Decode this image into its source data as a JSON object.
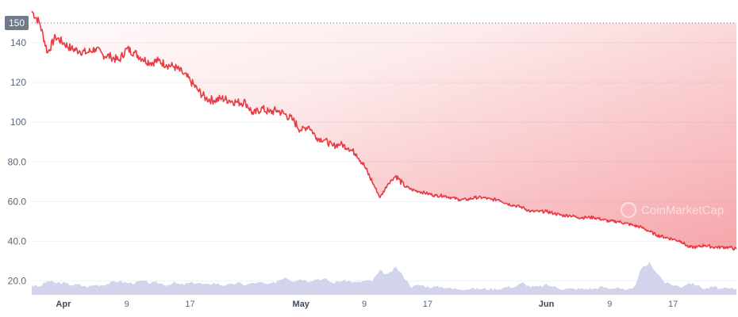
{
  "chart_data": {
    "type": "line",
    "title": "",
    "xlabel": "",
    "ylabel": "",
    "ylim": [
      13,
      156
    ],
    "y_ticks": [
      {
        "value": 140,
        "label": "140"
      },
      {
        "value": 120,
        "label": "120"
      },
      {
        "value": 100,
        "label": "100"
      },
      {
        "value": 80,
        "label": "80.0"
      },
      {
        "value": 60,
        "label": "60.0"
      },
      {
        "value": 40,
        "label": "40.0"
      },
      {
        "value": 20,
        "label": "20.0"
      }
    ],
    "x_ticks": [
      {
        "date": "2024-04-01",
        "label": "Apr",
        "month": true
      },
      {
        "date": "2024-04-09",
        "label": "9",
        "month": false
      },
      {
        "date": "2024-04-17",
        "label": "17",
        "month": false
      },
      {
        "date": "2024-05-01",
        "label": "May",
        "month": true
      },
      {
        "date": "2024-05-09",
        "label": "9",
        "month": false
      },
      {
        "date": "2024-05-17",
        "label": "17",
        "month": false
      },
      {
        "date": "2024-06-01",
        "label": "Jun",
        "month": true
      },
      {
        "date": "2024-06-09",
        "label": "9",
        "month": false
      },
      {
        "date": "2024-06-17",
        "label": "17",
        "month": false
      }
    ],
    "x_range": [
      "2024-03-28",
      "2024-06-25"
    ],
    "reference_line": {
      "value": 150,
      "label": "150",
      "style": "dotted"
    },
    "watermark": "CoinMarketCap",
    "grid": true,
    "series": [
      {
        "type": "line",
        "color": "#ea3943",
        "fill": "red gradient",
        "x": [
          "2024-03-28",
          "2024-03-29",
          "2024-03-30",
          "2024-03-31",
          "2024-04-01",
          "2024-04-02",
          "2024-04-03",
          "2024-04-04",
          "2024-04-05",
          "2024-04-06",
          "2024-04-07",
          "2024-04-08",
          "2024-04-09",
          "2024-04-10",
          "2024-04-11",
          "2024-04-12",
          "2024-04-13",
          "2024-04-14",
          "2024-04-15",
          "2024-04-16",
          "2024-04-17",
          "2024-04-18",
          "2024-04-19",
          "2024-04-20",
          "2024-04-21",
          "2024-04-22",
          "2024-04-23",
          "2024-04-24",
          "2024-04-25",
          "2024-04-26",
          "2024-04-27",
          "2024-04-28",
          "2024-04-29",
          "2024-04-30",
          "2024-05-01",
          "2024-05-02",
          "2024-05-03",
          "2024-05-04",
          "2024-05-05",
          "2024-05-06",
          "2024-05-07",
          "2024-05-08",
          "2024-05-09",
          "2024-05-10",
          "2024-05-11",
          "2024-05-12",
          "2024-05-13",
          "2024-05-14",
          "2024-05-15",
          "2024-05-16",
          "2024-05-17",
          "2024-05-18",
          "2024-05-19",
          "2024-05-20",
          "2024-05-21",
          "2024-05-22",
          "2024-05-23",
          "2024-05-24",
          "2024-05-25",
          "2024-05-26",
          "2024-05-27",
          "2024-05-28",
          "2024-05-29",
          "2024-05-30",
          "2024-05-31",
          "2024-06-01",
          "2024-06-02",
          "2024-06-03",
          "2024-06-04",
          "2024-06-05",
          "2024-06-06",
          "2024-06-07",
          "2024-06-08",
          "2024-06-09",
          "2024-06-10",
          "2024-06-11",
          "2024-06-12",
          "2024-06-13",
          "2024-06-14",
          "2024-06-15",
          "2024-06-16",
          "2024-06-17",
          "2024-06-18",
          "2024-06-19",
          "2024-06-20",
          "2024-06-21",
          "2024-06-22",
          "2024-06-23",
          "2024-06-24",
          "2024-06-25"
        ],
        "values": [
          156,
          150,
          135,
          143,
          140,
          137,
          136,
          135,
          137,
          134,
          133,
          131,
          137,
          135,
          132,
          130,
          131,
          129,
          128,
          125,
          121,
          116,
          112,
          111,
          112,
          111,
          110,
          110,
          104,
          107,
          105,
          106,
          104,
          101,
          96,
          98,
          92,
          91,
          88,
          89,
          87,
          84,
          78,
          70,
          62,
          69,
          73,
          68,
          66,
          65,
          64,
          63,
          63,
          62,
          61,
          61,
          62,
          62,
          61,
          61,
          59,
          58,
          57,
          55,
          55,
          55,
          54,
          53,
          53,
          52,
          52,
          52,
          51,
          50,
          50,
          49,
          48,
          47,
          45,
          43,
          42,
          41,
          40,
          37,
          37,
          38,
          37,
          37,
          37,
          36
        ]
      },
      {
        "type": "area",
        "name": "volume",
        "color": "#c9cde6",
        "values": [
          18,
          17,
          20,
          19,
          19,
          18,
          18,
          17,
          18,
          18,
          19,
          20,
          19,
          19,
          20,
          19,
          19,
          18,
          19,
          18,
          19,
          19,
          18,
          19,
          18,
          18,
          19,
          18,
          19,
          19,
          18,
          20,
          22,
          20,
          21,
          20,
          21,
          21,
          19,
          20,
          20,
          19,
          20,
          20,
          25,
          23,
          27,
          22,
          17,
          18,
          17,
          17,
          17,
          16,
          16,
          16,
          16,
          16,
          16,
          16,
          17,
          17,
          19,
          17,
          17,
          18,
          17,
          16,
          16,
          16,
          16,
          16,
          17,
          16,
          17,
          15,
          16,
          26,
          29,
          24,
          19,
          18,
          17,
          19,
          18,
          16,
          17,
          16,
          16,
          16
        ]
      }
    ]
  }
}
